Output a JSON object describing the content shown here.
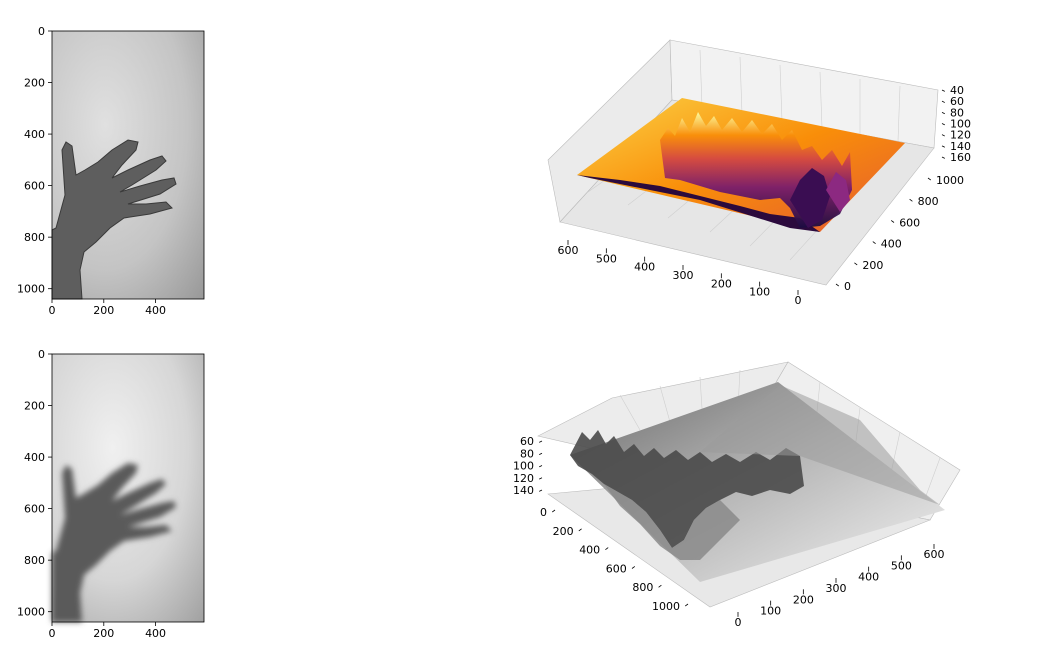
{
  "figure": {
    "layout": "2x2 subplots",
    "background": "#ffffff"
  },
  "chart_data": [
    {
      "type": "image",
      "panel": "top-left",
      "content": "grayscale photo of an open hand",
      "colormap": "gray",
      "x_ticks": [
        "0",
        "200",
        "400"
      ],
      "y_ticks": [
        "0",
        "200",
        "400",
        "600",
        "800",
        "1000"
      ],
      "xlim": [
        0,
        587
      ],
      "ylim": [
        1040,
        0
      ]
    },
    {
      "type": "surface3d",
      "panel": "top-right",
      "colormap": "inferno",
      "x_ticks": [
        "600",
        "500",
        "400",
        "300",
        "200",
        "100",
        "0"
      ],
      "y_ticks": [
        "0",
        "200",
        "400",
        "600",
        "800",
        "1000"
      ],
      "z_ticks": [
        "40",
        "60",
        "80",
        "100",
        "120",
        "140",
        "160"
      ],
      "zlim": [
        160,
        40
      ]
    },
    {
      "type": "image",
      "panel": "bottom-left",
      "content": "blurred grayscale photo of an open hand",
      "colormap": "gray",
      "x_ticks": [
        "0",
        "200",
        "400"
      ],
      "y_ticks": [
        "0",
        "200",
        "400",
        "600",
        "800",
        "1000"
      ],
      "xlim": [
        0,
        587
      ],
      "ylim": [
        1040,
        0
      ]
    },
    {
      "type": "surface3d",
      "panel": "bottom-right",
      "colormap": "gray",
      "x_ticks": [
        "0",
        "100",
        "200",
        "300",
        "400",
        "500",
        "600"
      ],
      "y_ticks": [
        "0",
        "200",
        "400",
        "600",
        "800",
        "1000"
      ],
      "z_ticks": [
        "60",
        "80",
        "100",
        "120",
        "140"
      ],
      "zlim": [
        140,
        60
      ]
    }
  ]
}
